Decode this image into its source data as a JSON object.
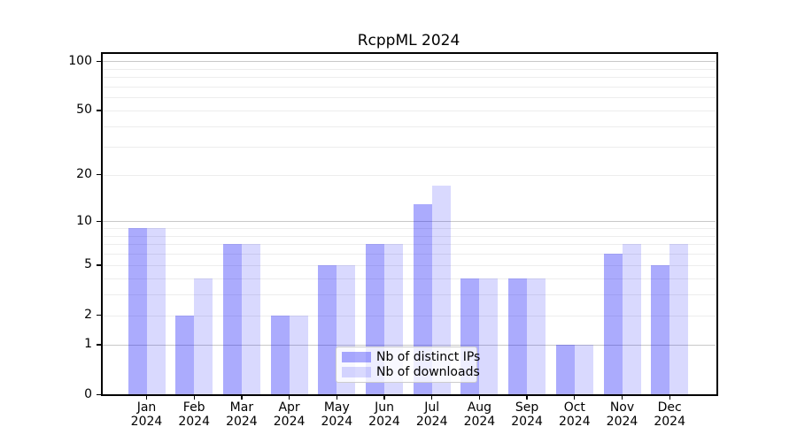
{
  "chart_data": {
    "type": "bar",
    "title": "RcppML 2024",
    "categories": [
      "Jan 2024",
      "Feb 2024",
      "Mar 2024",
      "Apr 2024",
      "May 2024",
      "Jun 2024",
      "Jul 2024",
      "Aug 2024",
      "Sep 2024",
      "Oct 2024",
      "Nov 2024",
      "Dec 2024"
    ],
    "x_tick_month_labels": [
      "Jan",
      "Feb",
      "Mar",
      "Apr",
      "May",
      "Jun",
      "Jul",
      "Aug",
      "Sep",
      "Oct",
      "Nov",
      "Dec"
    ],
    "x_tick_year_label": "2024",
    "series": [
      {
        "name": "Nb of distinct IPs",
        "color": "#0000fa54",
        "values": [
          9,
          2,
          7,
          2,
          5,
          7,
          13,
          4,
          4,
          1,
          6,
          5
        ]
      },
      {
        "name": "Nb of downloads",
        "color": "#0000fa26",
        "values": [
          9,
          4,
          7,
          2,
          5,
          7,
          17,
          4,
          4,
          1,
          7,
          7
        ]
      }
    ],
    "yscale": "log1p",
    "ylim": [
      0,
      113
    ],
    "ytick_values": [
      0,
      1,
      2,
      5,
      10,
      20,
      50,
      100
    ],
    "grid_major_values": [
      1,
      10,
      100
    ],
    "grid_minor_values": [
      2,
      3,
      4,
      5,
      6,
      7,
      8,
      9,
      20,
      30,
      40,
      50,
      60,
      70,
      80,
      90
    ],
    "grid": true,
    "legend_position": "lower center",
    "colors": {
      "grid_major": "#c9c9c9",
      "grid_minor": "#ededed",
      "axis": "#000000",
      "background": "#ffffff",
      "legend_border": "#cccccc"
    }
  }
}
